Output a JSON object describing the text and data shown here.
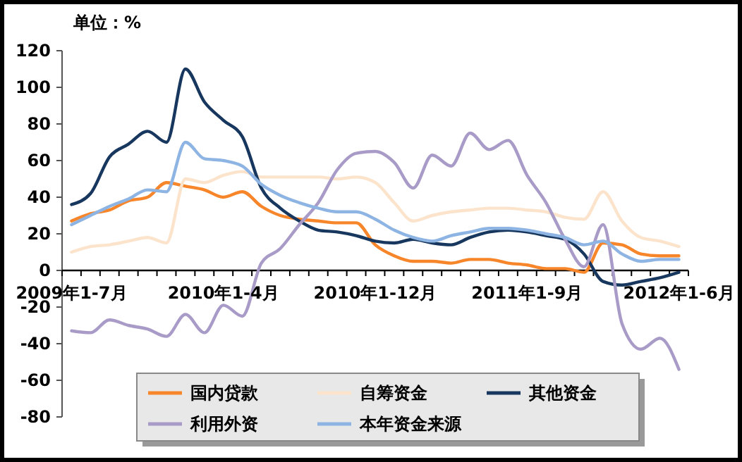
{
  "chart_data": {
    "type": "line",
    "ylabel": "单位：%",
    "categories": [
      "2009年1-7月",
      null,
      null,
      null,
      null,
      null,
      null,
      null,
      "2010年1-4月",
      null,
      null,
      null,
      null,
      null,
      null,
      null,
      "2010年1-12月",
      null,
      null,
      null,
      null,
      null,
      null,
      null,
      "2011年1-9月",
      null,
      null,
      null,
      null,
      null,
      null,
      null,
      "2012年1-6月"
    ],
    "ylim": [
      -80,
      120
    ],
    "yticks": [
      -80,
      -60,
      -40,
      -20,
      0,
      20,
      40,
      60,
      80,
      100,
      120
    ],
    "grid": false,
    "legend": "bottom",
    "marker": "none",
    "line_style": "solid",
    "series": [
      {
        "name": "国内贷款",
        "color": "#f7852a",
        "values": [
          27,
          31,
          33,
          38,
          40,
          48,
          46,
          44,
          40,
          43,
          35,
          30,
          28,
          27,
          26,
          26,
          14,
          8,
          5,
          5,
          4,
          6,
          6,
          4,
          3,
          1,
          1,
          -1,
          15,
          14,
          9,
          8,
          8
        ]
      },
      {
        "name": "自筹资金",
        "color": "#fce4cc",
        "values": [
          10,
          13,
          14,
          16,
          18,
          15,
          50,
          48,
          52,
          54,
          51,
          51,
          51,
          51,
          50,
          51,
          48,
          37,
          27,
          30,
          32,
          33,
          34,
          34,
          33,
          32,
          29,
          28,
          43,
          27,
          18,
          16,
          13
        ]
      },
      {
        "name": "其他资金",
        "color": "#17375e",
        "values": [
          36,
          42,
          62,
          69,
          76,
          70,
          110,
          92,
          82,
          73,
          45,
          34,
          27,
          22,
          21,
          19,
          16,
          15,
          17,
          15,
          14,
          18,
          21,
          22,
          21,
          19,
          17,
          9,
          -6,
          -8,
          -6,
          -4,
          -1
        ]
      },
      {
        "name": "利用外资",
        "color": "#a99bc8",
        "values": [
          -33,
          -34,
          -27,
          -30,
          -32,
          -36,
          -24,
          -34,
          -19,
          -25,
          4,
          12,
          25,
          37,
          55,
          64,
          65,
          59,
          45,
          63,
          57,
          75,
          66,
          71,
          52,
          37,
          17,
          2,
          25,
          -29,
          -43,
          -37,
          -54
        ]
      },
      {
        "name": "本年资金来源",
        "color": "#8db4e2",
        "values": [
          25,
          30,
          35,
          39,
          44,
          43,
          70,
          61,
          60,
          57,
          47,
          41,
          37,
          34,
          32,
          32,
          28,
          22,
          18,
          16,
          19,
          21,
          23,
          23,
          22,
          20,
          18,
          14,
          16,
          9,
          5,
          6,
          6
        ]
      }
    ]
  }
}
